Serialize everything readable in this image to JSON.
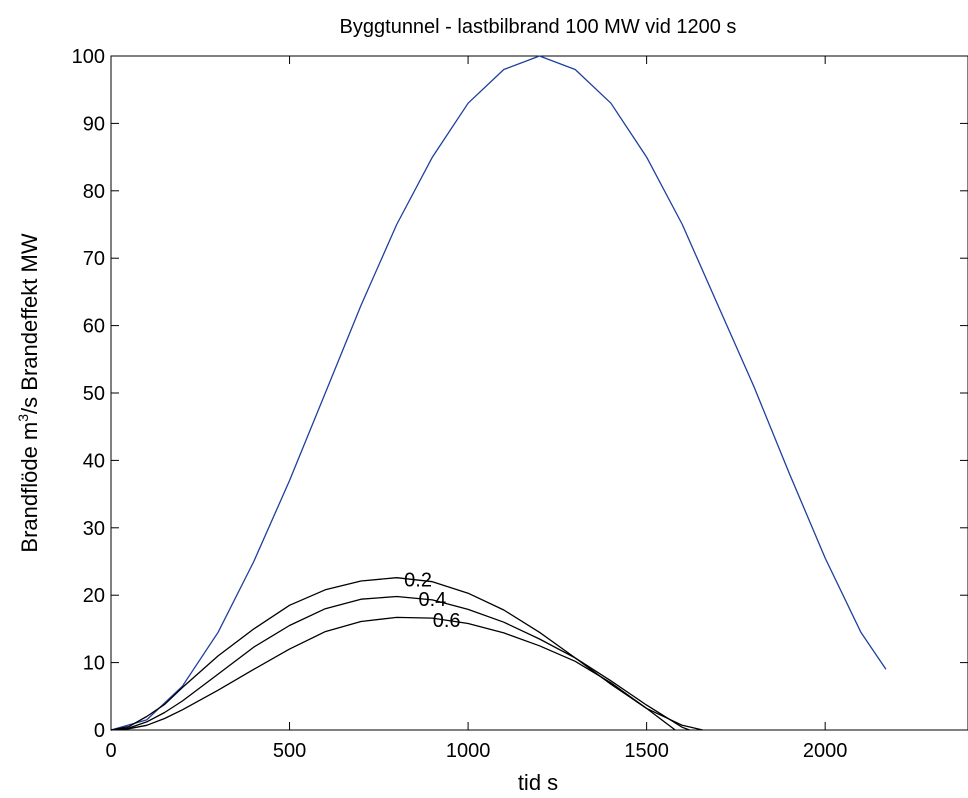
{
  "chart_data": {
    "type": "line",
    "title": "Byggtunnel - lastbilbrand  100 MW vid 1200 s",
    "xlabel": "tid  s",
    "ylabel_part1": "Brandflöde  m",
    "ylabel_sup": "3",
    "ylabel_part2": "/s   Brandeffekt  MW",
    "xlim": [
      0,
      2400
    ],
    "ylim": [
      0,
      100
    ],
    "x_ticks": [
      0,
      500,
      1000,
      1500,
      2000
    ],
    "y_ticks": [
      0,
      10,
      20,
      30,
      40,
      50,
      60,
      70,
      80,
      90,
      100
    ],
    "grid": false,
    "series": [
      {
        "color": "#1f3f9f",
        "x": [
          0,
          100,
          200,
          300,
          400,
          500,
          600,
          700,
          800,
          900,
          1000,
          1100,
          1200,
          1300,
          1400,
          1500,
          1600,
          1700,
          1800,
          1900,
          2000,
          2100,
          2170
        ],
        "y": [
          0,
          1.5,
          6.5,
          14.5,
          25,
          37,
          50,
          63,
          75,
          85,
          93,
          98,
          100,
          98,
          93,
          85,
          75,
          63,
          51,
          38,
          25.5,
          14.5,
          9
        ]
      },
      {
        "name": "0.2",
        "color": "#000000",
        "x": [
          0,
          50,
          100,
          150,
          200,
          300,
          400,
          500,
          600,
          700,
          800,
          900,
          1000,
          1100,
          1200,
          1300,
          1400,
          1500,
          1600,
          1657
        ],
        "y": [
          0,
          0.5,
          2,
          3.8,
          6.3,
          11,
          15,
          18.5,
          20.8,
          22.1,
          22.6,
          22,
          20.3,
          17.8,
          14.5,
          10.7,
          6.8,
          3.2,
          0.7,
          0
        ]
      },
      {
        "name": "0.4",
        "color": "#000000",
        "x": [
          0,
          50,
          100,
          150,
          200,
          300,
          400,
          500,
          600,
          700,
          800,
          900,
          1000,
          1100,
          1200,
          1300,
          1400,
          1500,
          1600,
          1620
        ],
        "y": [
          0,
          0.3,
          1.2,
          2.6,
          4.3,
          8.3,
          12.3,
          15.5,
          18,
          19.4,
          19.8,
          19.3,
          17.9,
          16,
          13.5,
          10.7,
          7.3,
          3.7,
          0.4,
          0
        ]
      },
      {
        "name": "0.6",
        "color": "#000000",
        "x": [
          0,
          50,
          100,
          150,
          200,
          300,
          400,
          500,
          600,
          700,
          800,
          900,
          1000,
          1100,
          1200,
          1300,
          1400,
          1500,
          1580
        ],
        "y": [
          0,
          0.2,
          0.7,
          1.7,
          3,
          5.9,
          9,
          12,
          14.6,
          16.1,
          16.7,
          16.6,
          15.8,
          14.4,
          12.5,
          10.2,
          7,
          3.2,
          0
        ]
      }
    ],
    "curve_labels": [
      {
        "text": "0.2",
        "x": 860,
        "y": 22.2
      },
      {
        "text": "0.4",
        "x": 900,
        "y": 19.3
      },
      {
        "text": "0.6",
        "x": 940,
        "y": 16.2
      }
    ]
  }
}
